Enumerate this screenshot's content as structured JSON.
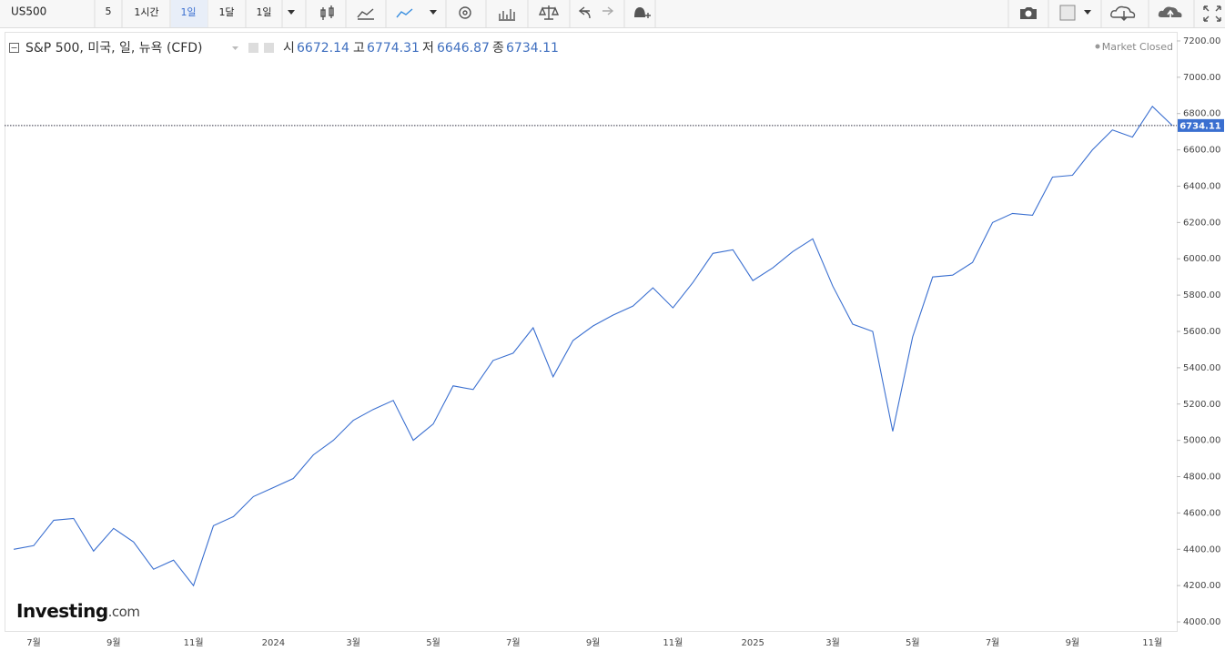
{
  "toolbar": {
    "symbol": "US500",
    "buttons": [
      "5",
      "1시간",
      "1일",
      "1달",
      "1일"
    ]
  },
  "legend": {
    "name": "S&P 500, 미국, 일, 뉴욕 (CFD)",
    "open_label": "시",
    "open": 6672.14,
    "high_label": "고",
    "high": 6774.31,
    "low_label": "저",
    "low": 6646.87,
    "close_label": "종",
    "close": 6734.11,
    "status": "Market Closed"
  },
  "watermark": {
    "brand": "Investing",
    "suffix": ".com"
  },
  "chart_data": {
    "type": "line",
    "color": "#3a6fd0",
    "categories": [
      null,
      "7월",
      null,
      null,
      null,
      "9월",
      null,
      null,
      null,
      "11월",
      null,
      null,
      null,
      "2024",
      null,
      null,
      null,
      "3월",
      null,
      null,
      null,
      "5월",
      null,
      null,
      null,
      "7월",
      null,
      null,
      null,
      "9월",
      null,
      null,
      null,
      "11월",
      null,
      null,
      null,
      "2025",
      null,
      null,
      null,
      "3월",
      null,
      null,
      null,
      "5월",
      null,
      null,
      null,
      "7월",
      null,
      null,
      null,
      "9월",
      null,
      null,
      null,
      "11월",
      null
    ],
    "values": [
      4400,
      4420,
      4560,
      4570,
      4390,
      4515,
      4440,
      4290,
      4340,
      4200,
      4530,
      4580,
      4690,
      4740,
      4790,
      4920,
      5000,
      5110,
      5170,
      5220,
      5000,
      5090,
      5300,
      5280,
      5440,
      5480,
      5620,
      5350,
      5550,
      5630,
      5690,
      5740,
      5840,
      5730,
      5870,
      6030,
      6050,
      5880,
      5950,
      6040,
      6110,
      5850,
      5640,
      5600,
      5050,
      5570,
      5900,
      5910,
      5980,
      6200,
      6250,
      6240,
      6450,
      6460,
      6600,
      6710,
      6670,
      6840,
      6734.11
    ],
    "ylim": [
      3950,
      7250
    ],
    "yticks": [
      {
        "value": 4000,
        "label": "4000.00"
      },
      {
        "value": 4200,
        "label": "4200.00"
      },
      {
        "value": 4400,
        "label": "4400.00"
      },
      {
        "value": 4600,
        "label": "4600.00"
      },
      {
        "value": 4800,
        "label": "4800.00"
      },
      {
        "value": 5000,
        "label": "5000.00"
      },
      {
        "value": 5200,
        "label": "5200.00"
      },
      {
        "value": 5400,
        "label": "5400.00"
      },
      {
        "value": 5600,
        "label": "5600.00"
      },
      {
        "value": 5800,
        "label": "5800.00"
      },
      {
        "value": 6000,
        "label": "6000.00"
      },
      {
        "value": 6200,
        "label": "6200.00"
      },
      {
        "value": 6400,
        "label": "6400.00"
      },
      {
        "value": 6600,
        "label": "6600.00"
      },
      {
        "value": 6800,
        "label": "6800.00"
      },
      {
        "value": 7000,
        "label": "7000.00"
      },
      {
        "value": 7200,
        "label": "7200.00"
      }
    ],
    "y_axis_side": "right",
    "grid": false
  }
}
